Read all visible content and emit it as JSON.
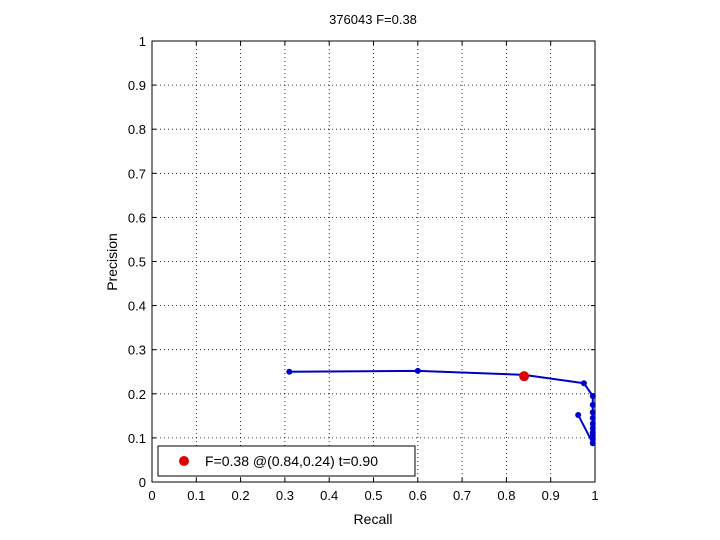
{
  "chart_data": {
    "type": "line",
    "title": "376043 F=0.38",
    "xlabel": "Recall",
    "ylabel": "Precision",
    "xlim": [
      0,
      1
    ],
    "ylim": [
      0,
      1
    ],
    "grid": true,
    "xticks": [
      "0",
      "0.1",
      "0.2",
      "0.3",
      "0.4",
      "0.5",
      "0.6",
      "0.7",
      "0.8",
      "0.9",
      "1"
    ],
    "yticks": [
      "0",
      "0.1",
      "0.2",
      "0.3",
      "0.4",
      "0.5",
      "0.6",
      "0.7",
      "0.8",
      "0.9",
      "1"
    ],
    "series": [
      {
        "color": "#0000c8",
        "x": [
          0.31,
          0.6,
          0.84,
          0.975,
          0.995,
          0.995,
          0.995,
          0.995,
          0.995,
          0.995,
          0.995,
          0.995,
          0.995,
          0.995,
          0.962
        ],
        "y": [
          0.25,
          0.252,
          0.243,
          0.224,
          0.195,
          0.175,
          0.158,
          0.145,
          0.132,
          0.122,
          0.112,
          0.105,
          0.098,
          0.088,
          0.152
        ]
      }
    ],
    "best_point": {
      "x": 0.84,
      "y": 0.24,
      "color": "#e00000"
    },
    "legend": {
      "text": "F=0.38 @(0.84,0.24) t=0.90",
      "location": "bottom-left"
    }
  }
}
